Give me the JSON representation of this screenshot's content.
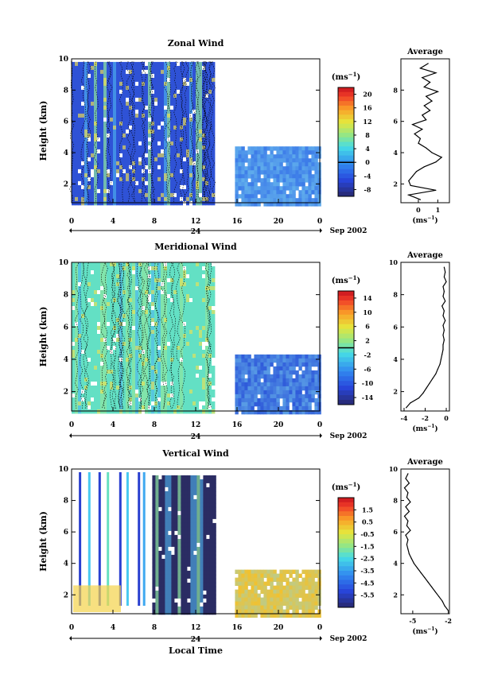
{
  "chart_data": [
    {
      "type": "heatmap",
      "title": "Zonal Wind",
      "ylabel": "Height (km)",
      "xticks": [
        "0",
        "4",
        "8",
        "12",
        "16",
        "20",
        "0"
      ],
      "yticks": [
        "2",
        "4",
        "6",
        "8",
        "10"
      ],
      "xlim": [
        0,
        24
      ],
      "ylim": [
        0.8,
        10
      ],
      "date_label": "24",
      "date_suffix": "Sep 2002",
      "colorbar": {
        "unit_base": "(ms",
        "unit_exp": "−1",
        "unit_close": ")",
        "ticks": [
          "20",
          "16",
          "12",
          "8",
          "4",
          "0",
          "-4",
          "-8"
        ],
        "range": [
          -10,
          22
        ],
        "marker": 0
      },
      "data_blocks": [
        {
          "x": [
            0.0,
            13.8
          ],
          "y": [
            0.8,
            9.8
          ],
          "base": "#2f52d6",
          "mix": 0.65,
          "vertical": true
        },
        {
          "x": [
            15.8,
            23.9
          ],
          "y": [
            0.8,
            4.4
          ],
          "base": "#3a78e8",
          "mix": 0.55,
          "vertical": false
        }
      ],
      "profile": {
        "title": "Average",
        "xticks": [
          "0",
          "1"
        ],
        "xlim": [
          -0.9,
          1.6
        ],
        "unit_base": "(ms",
        "unit_exp": "−1",
        "unit_close": ")",
        "yticks": [
          "2",
          "4",
          "6",
          "8"
        ],
        "heights": [
          1.0,
          1.3,
          1.6,
          1.9,
          2.2,
          2.5,
          2.8,
          3.1,
          3.4,
          3.7,
          4.0,
          4.3,
          4.6,
          4.9,
          5.2,
          5.5,
          5.8,
          6.1,
          6.4,
          6.7,
          7.0,
          7.3,
          7.6,
          7.9,
          8.2,
          8.5,
          8.8,
          9.1,
          9.4,
          9.7
        ],
        "values": [
          0.1,
          -0.5,
          0.9,
          -0.4,
          -0.5,
          -0.3,
          -0.1,
          0.3,
          0.9,
          1.2,
          0.7,
          0.4,
          0.0,
          0.1,
          -0.2,
          0.2,
          -0.3,
          0.4,
          0.2,
          0.6,
          0.3,
          0.7,
          0.4,
          1.0,
          0.3,
          0.6,
          0.2,
          0.9,
          0.1,
          0.5
        ]
      }
    },
    {
      "type": "heatmap",
      "title": "Meridional Wind",
      "ylabel": "Height (km)",
      "xticks": [
        "0",
        "4",
        "8",
        "12",
        "16",
        "20",
        "0"
      ],
      "yticks": [
        "2",
        "4",
        "6",
        "8",
        "10"
      ],
      "xlim": [
        0,
        24
      ],
      "ylim": [
        0.8,
        10
      ],
      "date_label": "24",
      "date_suffix": "Sep 2002",
      "colorbar": {
        "unit_base": "(ms",
        "unit_exp": "−1",
        "unit_close": ")",
        "ticks": [
          "14",
          "10",
          "6",
          "2",
          "-2",
          "-6",
          "-10",
          "-14"
        ],
        "range": [
          -16,
          16
        ],
        "marker": 0
      },
      "data_blocks": [
        {
          "x": [
            0.0,
            13.8
          ],
          "y": [
            0.8,
            10.0
          ],
          "base": "#63e0c4",
          "mix": 0.6,
          "vertical": true
        },
        {
          "x": [
            15.8,
            23.9
          ],
          "y": [
            0.8,
            4.3
          ],
          "base": "#2c56d9",
          "mix": 0.55,
          "vertical": false
        }
      ],
      "profile": {
        "title": "Average",
        "xticks": [
          "-4",
          "-2",
          "0"
        ],
        "xlim": [
          -4.3,
          0.3
        ],
        "unit_base": "(ms",
        "unit_exp": "−1",
        "unit_close": ")",
        "yticks": [
          "2",
          "4",
          "6",
          "8",
          "10"
        ],
        "heights": [
          1.0,
          1.3,
          1.6,
          1.9,
          2.2,
          2.5,
          2.8,
          3.1,
          3.4,
          3.7,
          4.0,
          4.3,
          4.6,
          4.9,
          5.2,
          5.5,
          5.8,
          6.1,
          6.4,
          6.7,
          7.0,
          7.3,
          7.6,
          7.9,
          8.2,
          8.5,
          8.8,
          9.1,
          9.4,
          9.7
        ],
        "values": [
          -3.8,
          -3.4,
          -2.6,
          -2.2,
          -1.9,
          -1.6,
          -1.3,
          -1.0,
          -0.8,
          -0.6,
          -0.5,
          -0.4,
          -0.3,
          -0.3,
          -0.2,
          -0.3,
          -0.2,
          -0.3,
          -0.1,
          -0.3,
          -0.2,
          -0.4,
          -0.1,
          -0.3,
          -0.2,
          -0.3,
          0.0,
          -0.2,
          -0.1,
          -0.2
        ]
      }
    },
    {
      "type": "heatmap",
      "title": "Vertical Wind",
      "ylabel": "Height (km)",
      "xlabel": "Local Time",
      "xticks": [
        "0",
        "4",
        "8",
        "12",
        "16",
        "20",
        "0"
      ],
      "yticks": [
        "2",
        "4",
        "6",
        "8",
        "10"
      ],
      "xlim": [
        0,
        24
      ],
      "ylim": [
        0.8,
        10
      ],
      "date_label": "24",
      "date_suffix": "Sep 2002",
      "colorbar": {
        "unit_base": "(ms",
        "unit_exp": "−1",
        "unit_close": ")",
        "ticks": [
          "1.5",
          "0.5",
          "-0.5",
          "-1.5",
          "-2.5",
          "-3.5",
          "-4.5",
          "-5.5"
        ],
        "range": [
          -6.5,
          2.5
        ],
        "marker": null
      },
      "data_blocks": [
        {
          "x": [
            7.8,
            13.8
          ],
          "y": [
            0.8,
            9.6
          ],
          "base": "#2b2c63",
          "mix": 0.0,
          "vertical": true
        },
        {
          "x": [
            15.8,
            23.9
          ],
          "y": [
            0.8,
            3.6
          ],
          "base": "#f4c02a",
          "mix": 0.45,
          "vertical": false
        }
      ],
      "strips": [
        0.7,
        1.6,
        2.6,
        3.4,
        4.6,
        5.3,
        6.4,
        6.9
      ],
      "profile": {
        "title": "Average",
        "xticks": [
          "-5",
          "-2"
        ],
        "xlim": [
          -6.0,
          -1.9
        ],
        "unit_base": "(ms",
        "unit_exp": "−1",
        "unit_close": ")",
        "yticks": [
          "2",
          "4",
          "6",
          "8",
          "10"
        ],
        "heights": [
          1.0,
          1.3,
          1.6,
          1.9,
          2.2,
          2.5,
          2.8,
          3.1,
          3.4,
          3.7,
          4.0,
          4.3,
          4.6,
          4.9,
          5.2,
          5.5,
          5.8,
          6.1,
          6.4,
          6.7,
          7.0,
          7.3,
          7.6,
          7.9,
          8.2,
          8.5,
          8.8,
          9.1,
          9.4,
          9.7
        ],
        "values": [
          -2.0,
          -2.3,
          -2.5,
          -2.8,
          -3.1,
          -3.4,
          -3.7,
          -4.0,
          -4.3,
          -4.6,
          -4.9,
          -5.1,
          -5.3,
          -5.4,
          -5.5,
          -5.4,
          -5.6,
          -5.2,
          -5.5,
          -5.4,
          -5.7,
          -5.3,
          -5.6,
          -5.2,
          -5.5,
          -5.4,
          -5.7,
          -5.3,
          -5.6,
          -5.4
        ]
      }
    }
  ]
}
